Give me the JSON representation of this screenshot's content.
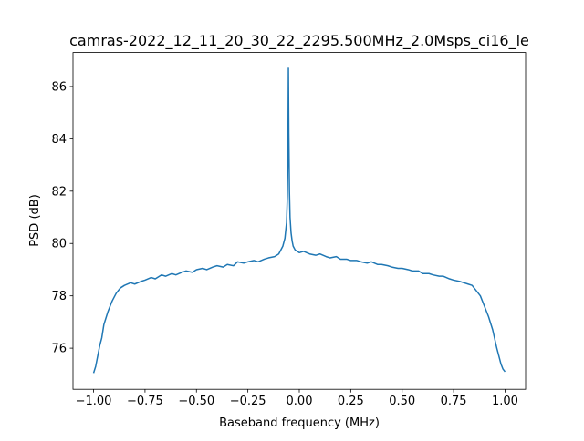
{
  "chart_data": {
    "type": "line",
    "title": "camras-2022_12_11_20_30_22_2295.500MHz_2.0Msps_ci16_le",
    "x_label": "Baseband frequency (MHz)",
    "y_label": "PSD (dB)",
    "xlim": [
      -1.1,
      1.1
    ],
    "ylim": [
      74.43,
      87.3
    ],
    "xticks": [
      {
        "value": -1,
        "label": "−1.00"
      },
      {
        "value": -0.75,
        "label": "−0.75"
      },
      {
        "value": -0.5,
        "label": "−0.50"
      },
      {
        "value": -0.25,
        "label": "−0.25"
      },
      {
        "value": 0,
        "label": "0.00"
      },
      {
        "value": 0.25,
        "label": "0.25"
      },
      {
        "value": 0.5,
        "label": "0.50"
      },
      {
        "value": 0.75,
        "label": "0.75"
      },
      {
        "value": 1,
        "label": "1.00"
      }
    ],
    "yticks": [
      76,
      78,
      80,
      82,
      84,
      86
    ],
    "grid": false,
    "x": [
      -1.0,
      -0.99,
      -0.98,
      -0.97,
      -0.96,
      -0.95,
      -0.93,
      -0.91,
      -0.89,
      -0.87,
      -0.85,
      -0.82,
      -0.8,
      -0.77,
      -0.75,
      -0.72,
      -0.7,
      -0.67,
      -0.65,
      -0.62,
      -0.6,
      -0.57,
      -0.55,
      -0.52,
      -0.5,
      -0.47,
      -0.45,
      -0.42,
      -0.4,
      -0.37,
      -0.35,
      -0.32,
      -0.3,
      -0.27,
      -0.25,
      -0.22,
      -0.2,
      -0.17,
      -0.15,
      -0.12,
      -0.1,
      -0.08,
      -0.07,
      -0.062,
      -0.058,
      -0.055,
      -0.053,
      -0.051,
      -0.048,
      -0.045,
      -0.04,
      -0.035,
      -0.03,
      -0.02,
      -0.01,
      0.0,
      0.02,
      0.05,
      0.08,
      0.1,
      0.13,
      0.15,
      0.18,
      0.2,
      0.23,
      0.25,
      0.28,
      0.3,
      0.33,
      0.35,
      0.38,
      0.4,
      0.43,
      0.45,
      0.48,
      0.5,
      0.53,
      0.55,
      0.58,
      0.6,
      0.63,
      0.65,
      0.68,
      0.7,
      0.73,
      0.75,
      0.78,
      0.8,
      0.82,
      0.84,
      0.86,
      0.88,
      0.9,
      0.92,
      0.94,
      0.96,
      0.97,
      0.98,
      0.99,
      1.0
    ],
    "series": [
      {
        "color": "#1f77b4",
        "values": [
          75.05,
          75.3,
          75.7,
          76.1,
          76.4,
          76.9,
          77.4,
          77.8,
          78.1,
          78.3,
          78.4,
          78.5,
          78.45,
          78.55,
          78.6,
          78.7,
          78.65,
          78.8,
          78.75,
          78.85,
          78.8,
          78.9,
          78.95,
          78.9,
          79.0,
          79.05,
          79.0,
          79.1,
          79.15,
          79.1,
          79.2,
          79.15,
          79.3,
          79.25,
          79.3,
          79.35,
          79.3,
          79.4,
          79.45,
          79.5,
          79.6,
          79.9,
          80.2,
          80.8,
          81.8,
          83.5,
          86.7,
          84.2,
          82.0,
          81.0,
          80.4,
          80.1,
          79.9,
          79.75,
          79.7,
          79.65,
          79.7,
          79.6,
          79.55,
          79.6,
          79.5,
          79.45,
          79.5,
          79.4,
          79.4,
          79.35,
          79.35,
          79.3,
          79.25,
          79.3,
          79.2,
          79.2,
          79.15,
          79.1,
          79.05,
          79.05,
          79.0,
          78.95,
          78.95,
          78.85,
          78.85,
          78.8,
          78.75,
          78.75,
          78.65,
          78.6,
          78.55,
          78.5,
          78.45,
          78.4,
          78.2,
          78.0,
          77.6,
          77.2,
          76.7,
          76.0,
          75.7,
          75.4,
          75.2,
          75.1
        ]
      }
    ]
  }
}
